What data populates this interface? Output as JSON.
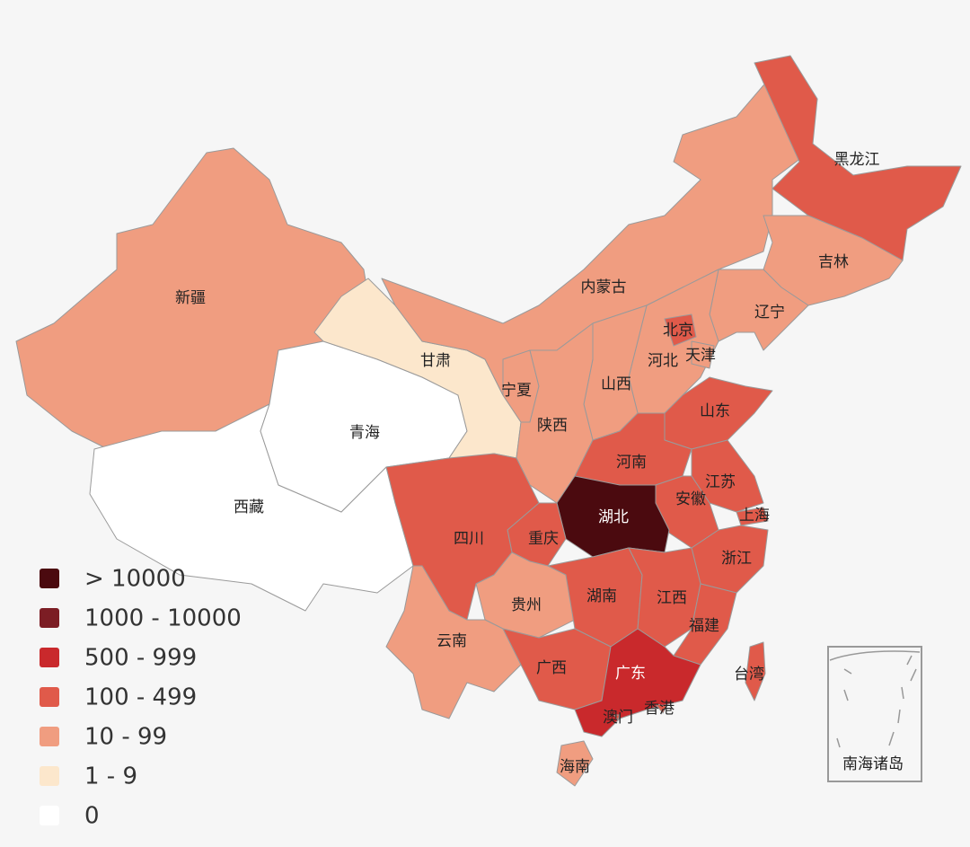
{
  "legend": {
    "items": [
      {
        "label": "> 10000",
        "color": "#4b0a0f"
      },
      {
        "label": "1000 - 10000",
        "color": "#7c1d24"
      },
      {
        "label": "500 - 999",
        "color": "#c9292c"
      },
      {
        "label": "100 - 499",
        "color": "#e05a4a"
      },
      {
        "label": "10 - 99",
        "color": "#f09d80"
      },
      {
        "label": "1 - 9",
        "color": "#fce7cc"
      },
      {
        "label": "0",
        "color": "#ffffff"
      }
    ]
  },
  "regions": [
    {
      "label": "新疆",
      "color": "#f09d80"
    },
    {
      "label": "西藏",
      "color": "#ffffff"
    },
    {
      "label": "青海",
      "color": "#ffffff"
    },
    {
      "label": "甘肃",
      "color": "#fce7cc"
    },
    {
      "label": "内蒙古",
      "color": "#f09d80"
    },
    {
      "label": "黑龙江",
      "color": "#e05a4a"
    },
    {
      "label": "吉林",
      "color": "#f09d80"
    },
    {
      "label": "辽宁",
      "color": "#f09d80"
    },
    {
      "label": "河北",
      "color": "#f09d80"
    },
    {
      "label": "北京",
      "color": "#e05a4a"
    },
    {
      "label": "天津",
      "color": "#f09d80"
    },
    {
      "label": "山西",
      "color": "#f09d80"
    },
    {
      "label": "宁夏",
      "color": "#f09d80"
    },
    {
      "label": "陕西",
      "color": "#f09d80"
    },
    {
      "label": "山东",
      "color": "#e05a4a"
    },
    {
      "label": "河南",
      "color": "#e05a4a"
    },
    {
      "label": "江苏",
      "color": "#e05a4a"
    },
    {
      "label": "安徽",
      "color": "#e05a4a"
    },
    {
      "label": "上海",
      "color": "#e05a4a"
    },
    {
      "label": "浙江",
      "color": "#e05a4a"
    },
    {
      "label": "湖北",
      "color": "#4b0a0f"
    },
    {
      "label": "重庆",
      "color": "#e05a4a"
    },
    {
      "label": "四川",
      "color": "#e05a4a"
    },
    {
      "label": "贵州",
      "color": "#f09d80"
    },
    {
      "label": "湖南",
      "color": "#e05a4a"
    },
    {
      "label": "江西",
      "color": "#e05a4a"
    },
    {
      "label": "福建",
      "color": "#e05a4a"
    },
    {
      "label": "云南",
      "color": "#f09d80"
    },
    {
      "label": "广西",
      "color": "#e05a4a"
    },
    {
      "label": "广东",
      "color": "#c9292c"
    },
    {
      "label": "台湾",
      "color": "#e05a4a"
    },
    {
      "label": "海南",
      "color": "#f09d80"
    },
    {
      "label": "香港",
      "color": "#e05a4a"
    },
    {
      "label": "澳门",
      "color": "#e05a4a"
    }
  ],
  "inset": {
    "label": "南海诸岛"
  }
}
